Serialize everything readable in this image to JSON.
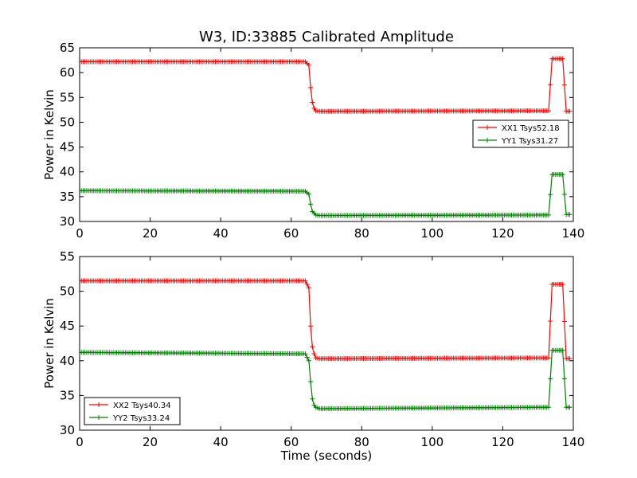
{
  "chart_data": {
    "title": "W3, ID:33885 Calibrated Amplitude",
    "xlabel": "Time (seconds)",
    "panels": [
      {
        "type": "line",
        "ylabel": "Power in Kelvin",
        "xlim": [
          0,
          140
        ],
        "ylim": [
          30,
          65
        ],
        "xticks": [
          0,
          20,
          40,
          60,
          80,
          100,
          120,
          140
        ],
        "yticks": [
          30,
          35,
          40,
          45,
          50,
          55,
          60,
          65
        ],
        "grid": false,
        "legend": "right",
        "series": [
          {
            "name": "XX1 Tsys52.18",
            "color": "#ff0000",
            "marker": "+",
            "x": [
              0,
              64,
              65,
              65.5,
              66,
              66.5,
              67,
              68,
              133,
              134,
              137,
              138,
              139
            ],
            "y": [
              62.2,
              62.2,
              61.5,
              57,
              54,
              52.8,
              52.3,
              52.2,
              52.3,
              62.8,
              62.8,
              52.2,
              52.2
            ]
          },
          {
            "name": "YY1 Tsys31.27",
            "color": "#008000",
            "marker": "+",
            "x": [
              0,
              64,
              65,
              65.5,
              66,
              67,
              68,
              133,
              134,
              137,
              138,
              139
            ],
            "y": [
              36.2,
              36.1,
              35.5,
              33.5,
              32,
              31.3,
              31.2,
              31.3,
              39.5,
              39.5,
              31.4,
              31.4
            ]
          }
        ]
      },
      {
        "type": "line",
        "ylabel": "Power in Kelvin",
        "xlim": [
          0,
          140
        ],
        "ylim": [
          30,
          55
        ],
        "xticks": [
          0,
          20,
          40,
          60,
          80,
          100,
          120,
          140
        ],
        "yticks": [
          30,
          35,
          40,
          45,
          50,
          55
        ],
        "grid": false,
        "legend": "lower left",
        "series": [
          {
            "name": "XX2 Tsys40.34",
            "color": "#ff0000",
            "marker": "+",
            "x": [
              0,
              64,
              65,
              65.5,
              66,
              66.5,
              67,
              68,
              133,
              134,
              137,
              138,
              139
            ],
            "y": [
              51.5,
              51.5,
              50.5,
              45,
              42,
              41,
              40.4,
              40.3,
              40.4,
              51,
              51,
              40.3,
              40.3
            ]
          },
          {
            "name": "YY2 Tsys33.24",
            "color": "#008000",
            "marker": "+",
            "x": [
              0,
              64,
              65,
              65.5,
              66,
              66.5,
              67,
              68,
              133,
              134,
              137,
              138,
              139
            ],
            "y": [
              41.2,
              41,
              40,
              37,
              34.5,
              33.6,
              33.3,
              33.1,
              33.3,
              41.5,
              41.5,
              33.3,
              33.3
            ]
          }
        ]
      }
    ]
  }
}
